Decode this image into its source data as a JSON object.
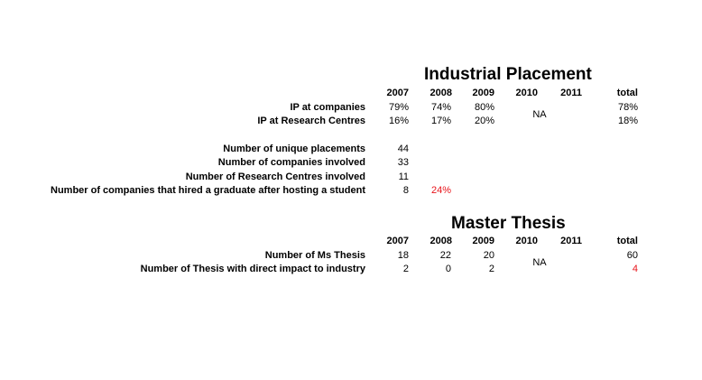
{
  "industrial": {
    "title": "Industrial Placement",
    "years": [
      "2007",
      "2008",
      "2009",
      "2010",
      "2011"
    ],
    "total_label": "total",
    "na": "NA",
    "rows": [
      {
        "label": "IP at companies",
        "values": [
          "79%",
          "74%",
          "80%"
        ],
        "total": "78%"
      },
      {
        "label": "IP at Research Centres",
        "values": [
          "16%",
          "17%",
          "20%"
        ],
        "total": "18%"
      }
    ],
    "stats": [
      {
        "label": "Number of unique placements",
        "value": "44"
      },
      {
        "label": "Number of companies involved",
        "value": "33"
      },
      {
        "label": "Number of Research Centres involved",
        "value": "11"
      },
      {
        "label": "Number of companies that hired a graduate after hosting a student",
        "value": "8",
        "extra": "24%"
      }
    ]
  },
  "thesis": {
    "title": "Master Thesis",
    "years": [
      "2007",
      "2008",
      "2009",
      "2010",
      "2011"
    ],
    "total_label": "total",
    "na": "NA",
    "rows": [
      {
        "label": "Number of Ms Thesis",
        "values": [
          "18",
          "22",
          "20"
        ],
        "total": "60"
      },
      {
        "label": "Number of Thesis with direct impact to industry",
        "values": [
          "2",
          "0",
          "2"
        ],
        "total": "4"
      }
    ]
  },
  "colors": {
    "highlight": "#e8141b"
  }
}
